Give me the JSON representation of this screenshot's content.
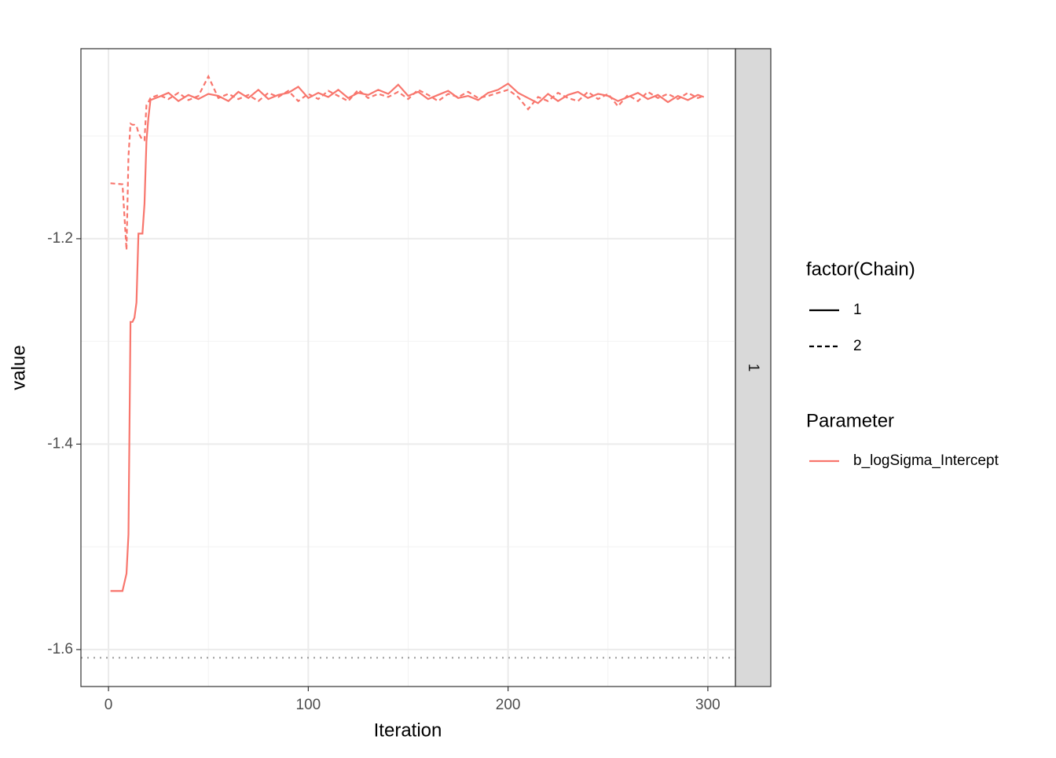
{
  "chart_data": {
    "type": "line",
    "x_label": "Iteration",
    "y_label": "value",
    "xlim": [
      -13.8,
      313.8
    ],
    "ylim": [
      -1.636,
      -1.015
    ],
    "xticks": [
      0,
      100,
      200,
      300
    ],
    "yticks": [
      -1.6,
      -1.4,
      -1.2
    ],
    "xminor": [
      50,
      150,
      250
    ],
    "yminor": [
      -1.5,
      -1.3,
      -1.1
    ],
    "grid": true,
    "hline": -1.608,
    "facet_label": "1",
    "linetype_legend_title": "factor(Chain)",
    "color_legend": {
      "title": "Parameter",
      "labels": [
        "b_logSigma_Intercept"
      ],
      "colors": [
        "#F8766D"
      ]
    },
    "x": [
      1,
      7,
      9,
      10,
      11,
      12,
      13,
      14,
      15,
      17,
      18,
      19,
      20,
      21,
      25,
      30,
      35,
      40,
      45,
      50,
      55,
      60,
      65,
      70,
      75,
      80,
      85,
      90,
      95,
      100,
      105,
      110,
      115,
      120,
      125,
      130,
      135,
      140,
      145,
      150,
      155,
      160,
      165,
      170,
      175,
      180,
      185,
      190,
      195,
      200,
      205,
      210,
      215,
      220,
      225,
      230,
      235,
      240,
      245,
      250,
      255,
      260,
      265,
      270,
      275,
      280,
      285,
      290,
      295,
      298
    ],
    "series": [
      {
        "name": "1",
        "dash": "solid",
        "color": "#F8766D",
        "values": [
          -1.543,
          -1.543,
          -1.526,
          -1.488,
          -1.281,
          -1.281,
          -1.277,
          -1.262,
          -1.195,
          -1.195,
          -1.166,
          -1.105,
          -1.082,
          -1.065,
          -1.062,
          -1.058,
          -1.066,
          -1.06,
          -1.064,
          -1.059,
          -1.061,
          -1.066,
          -1.057,
          -1.063,
          -1.055,
          -1.064,
          -1.06,
          -1.058,
          -1.052,
          -1.063,
          -1.058,
          -1.062,
          -1.055,
          -1.063,
          -1.058,
          -1.06,
          -1.055,
          -1.059,
          -1.05,
          -1.061,
          -1.057,
          -1.064,
          -1.06,
          -1.056,
          -1.063,
          -1.061,
          -1.065,
          -1.058,
          -1.055,
          -1.049,
          -1.058,
          -1.063,
          -1.068,
          -1.059,
          -1.066,
          -1.06,
          -1.057,
          -1.063,
          -1.059,
          -1.061,
          -1.066,
          -1.062,
          -1.058,
          -1.064,
          -1.06,
          -1.067,
          -1.061,
          -1.065,
          -1.06,
          -1.062
        ]
      },
      {
        "name": "2",
        "dash": "dashed",
        "color": "#F8766D",
        "values": [
          -1.146,
          -1.147,
          -1.211,
          -1.12,
          -1.088,
          -1.089,
          -1.089,
          -1.09,
          -1.097,
          -1.104,
          -1.104,
          -1.07,
          -1.067,
          -1.063,
          -1.06,
          -1.064,
          -1.058,
          -1.065,
          -1.061,
          -1.042,
          -1.063,
          -1.059,
          -1.064,
          -1.06,
          -1.066,
          -1.058,
          -1.062,
          -1.056,
          -1.066,
          -1.059,
          -1.064,
          -1.056,
          -1.061,
          -1.066,
          -1.055,
          -1.063,
          -1.059,
          -1.062,
          -1.057,
          -1.064,
          -1.055,
          -1.06,
          -1.066,
          -1.059,
          -1.062,
          -1.057,
          -1.063,
          -1.061,
          -1.058,
          -1.055,
          -1.062,
          -1.074,
          -1.062,
          -1.066,
          -1.058,
          -1.063,
          -1.066,
          -1.057,
          -1.064,
          -1.059,
          -1.071,
          -1.06,
          -1.066,
          -1.057,
          -1.063,
          -1.059,
          -1.064,
          -1.058,
          -1.063,
          -1.061
        ]
      }
    ]
  }
}
